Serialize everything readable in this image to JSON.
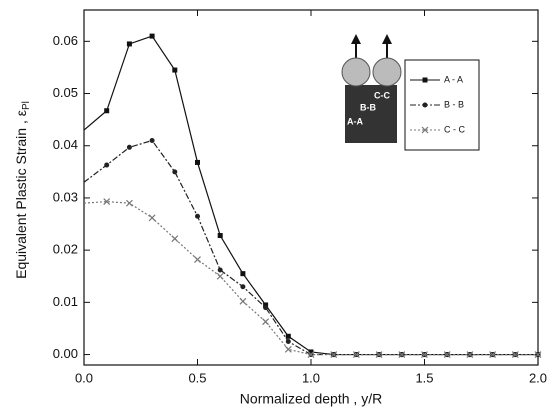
{
  "chart_data": {
    "type": "line",
    "xlabel": "Normalized depth , y/R",
    "ylabel": "Equivalent Plastic Strain , ε",
    "ylabel_subscript": "Pl",
    "x": [
      0.0,
      0.1,
      0.2,
      0.3,
      0.4,
      0.5,
      0.6,
      0.7,
      0.8,
      0.9,
      1.0,
      1.1,
      1.2,
      1.3,
      1.4,
      1.5,
      1.6,
      1.7,
      1.8,
      1.9,
      2.0
    ],
    "series": [
      {
        "name": "A - A",
        "color": "#111111",
        "marker": "square",
        "dash": "none",
        "values": [
          0.043,
          0.0467,
          0.0595,
          0.061,
          0.0545,
          0.0368,
          0.0228,
          0.0155,
          0.0095,
          0.0035,
          0.0005,
          0,
          0,
          0,
          0,
          0,
          0,
          0,
          0,
          0,
          0
        ]
      },
      {
        "name": "B - B",
        "color": "#222222",
        "marker": "circle",
        "dash": "6,2,2,2",
        "values": [
          0.033,
          0.0363,
          0.0397,
          0.041,
          0.035,
          0.0265,
          0.0162,
          0.013,
          0.009,
          0.0025,
          0,
          0,
          0,
          0,
          0,
          0,
          0,
          0,
          0,
          0,
          0
        ]
      },
      {
        "name": "C - C",
        "color": "#777777",
        "marker": "cross",
        "dash": "2,2",
        "values": [
          0.029,
          0.0293,
          0.029,
          0.0262,
          0.0222,
          0.0182,
          0.015,
          0.0102,
          0.0063,
          0.001,
          0,
          0,
          0,
          0,
          0,
          0,
          0,
          0,
          0,
          0,
          0
        ]
      }
    ],
    "xlim": [
      0,
      2
    ],
    "ylim": [
      -0.002,
      0.066
    ],
    "xticks": [
      {
        "value": 0,
        "label": "0.0"
      },
      {
        "value": 0.5,
        "label": "0.5"
      },
      {
        "value": 1,
        "label": "1.0"
      },
      {
        "value": 1.5,
        "label": "1.5"
      },
      {
        "value": 2,
        "label": "2.0"
      }
    ],
    "yticks": [
      {
        "value": 0,
        "label": "0.00"
      },
      {
        "value": 0.01,
        "label": "0.01"
      },
      {
        "value": 0.02,
        "label": "0.02"
      },
      {
        "value": 0.03,
        "label": "0.03"
      },
      {
        "value": 0.04,
        "label": "0.04"
      },
      {
        "value": 0.05,
        "label": "0.05"
      },
      {
        "value": 0.06,
        "label": "0.06"
      }
    ],
    "inset_labels": [
      "C-C",
      "B-B",
      "A-A"
    ],
    "grid": false
  }
}
